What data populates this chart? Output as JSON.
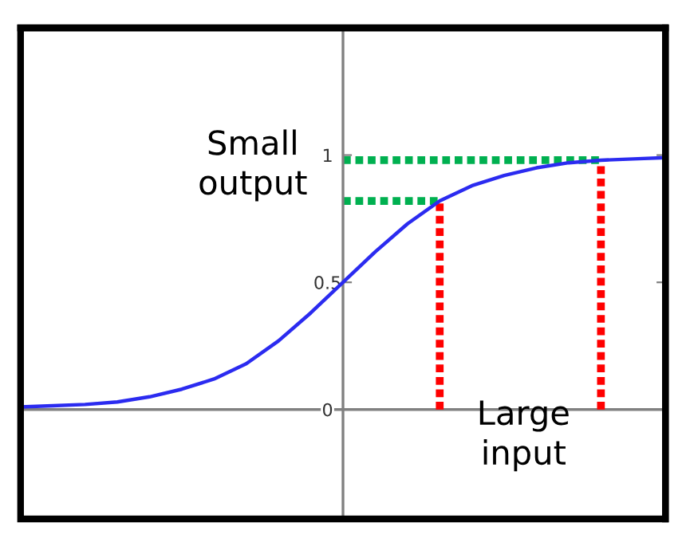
{
  "chart_data": {
    "type": "line",
    "categories": [
      null,
      null,
      null,
      null,
      null,
      null,
      null,
      null,
      null,
      null,
      null,
      null,
      null,
      null,
      null,
      null,
      null,
      null,
      null,
      null,
      null
    ],
    "ylim": [
      -0.43,
      1.5
    ],
    "yticks": [
      0,
      0.5,
      1
    ],
    "ref_lines": [
      {
        "axis": "y",
        "value": 0,
        "color": "#808080"
      }
    ],
    "series": [
      {
        "color": "#2b2bf0",
        "line_style": "solid",
        "values": [
          0.01,
          0.015,
          0.02,
          0.03,
          0.05,
          0.08,
          0.12,
          0.18,
          0.27,
          0.38,
          0.5,
          0.62,
          0.73,
          0.82,
          0.88,
          0.92,
          0.95,
          0.97,
          0.98,
          0.985,
          0.99
        ]
      },
      {
        "color": "#00b050",
        "line_style": "dotted",
        "values": [
          null,
          null,
          null,
          null,
          null,
          null,
          null,
          null,
          null,
          null,
          0.82,
          0.82,
          0.82,
          0.82,
          null,
          null,
          null,
          null,
          null,
          null,
          null
        ]
      },
      {
        "color": "#00b050",
        "line_style": "dotted",
        "values": [
          null,
          null,
          null,
          null,
          null,
          null,
          null,
          null,
          null,
          null,
          0.98,
          0.98,
          0.98,
          0.98,
          0.98,
          0.98,
          0.98,
          0.98,
          0.98,
          null,
          null
        ]
      }
    ],
    "annotations": [
      "Small\noutput",
      "Large\ninput"
    ],
    "grid": false,
    "legend": false,
    "marker": "none"
  }
}
